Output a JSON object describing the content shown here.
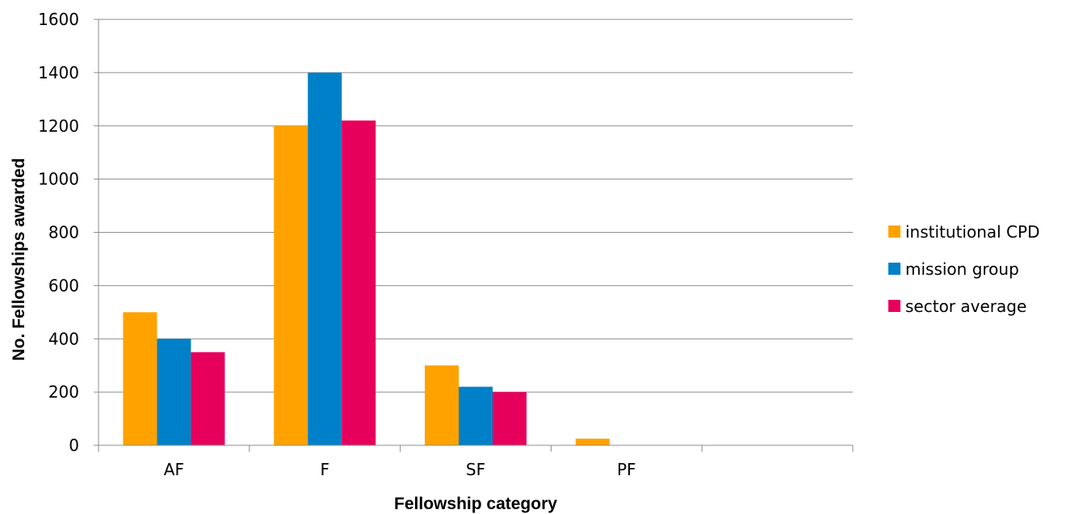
{
  "chart_data": {
    "type": "bar",
    "title": "",
    "xlabel": "Fellowship category",
    "ylabel": "No. Fellowships awarded",
    "categories": [
      "AF",
      "F",
      "SF",
      "PF",
      ""
    ],
    "ylim": [
      0,
      1600
    ],
    "yticks": [
      0,
      200,
      400,
      600,
      800,
      1000,
      1200,
      1400,
      1600
    ],
    "grid": true,
    "legend_position": "right",
    "series": [
      {
        "name": "institutional CPD",
        "color": "#ffa200",
        "values": [
          500,
          1200,
          300,
          25,
          0
        ]
      },
      {
        "name": "mission group",
        "color": "#0080c8",
        "values": [
          400,
          1400,
          220,
          0,
          0
        ]
      },
      {
        "name": "sector average",
        "color": "#e6005c",
        "values": [
          350,
          1220,
          200,
          0,
          0
        ]
      }
    ]
  }
}
